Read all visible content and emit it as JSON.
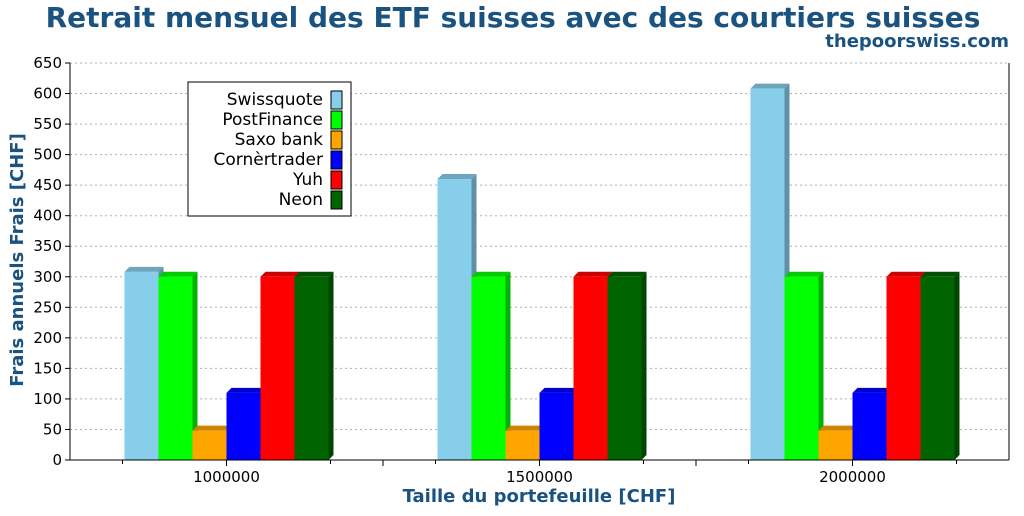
{
  "chart_data": {
    "type": "bar",
    "title": "Retrait mensuel des ETF suisses avec des courtiers suisses",
    "subtitle": "thepoorswiss.com",
    "xlabel": "Taille du portefeuille [CHF]",
    "ylabel": "Frais annuels Frais [CHF]",
    "categories": [
      "1000000",
      "1500000",
      "2000000"
    ],
    "ylim": [
      0,
      650
    ],
    "yticks": [
      0,
      50,
      100,
      150,
      200,
      250,
      300,
      350,
      400,
      450,
      500,
      550,
      600,
      650
    ],
    "grid": true,
    "legend_position": "top-left",
    "series": [
      {
        "name": "Swissquote",
        "color": "#87ceeb",
        "values": [
          308,
          460,
          608
        ]
      },
      {
        "name": "PostFinance",
        "color": "#00ff00",
        "values": [
          300,
          300,
          300
        ]
      },
      {
        "name": "Saxo bank",
        "color": "#ffa500",
        "values": [
          48,
          48,
          48
        ]
      },
      {
        "name": "Cornèrtrader",
        "color": "#0000ff",
        "values": [
          110,
          110,
          110
        ]
      },
      {
        "name": "Yuh",
        "color": "#ff0000",
        "values": [
          300,
          300,
          300
        ]
      },
      {
        "name": "Neon",
        "color": "#006400",
        "values": [
          300,
          300,
          300
        ]
      }
    ]
  },
  "colors": {
    "title": "#1a5280",
    "axis_label": "#1a5280",
    "grid": "#b0b0b0"
  }
}
